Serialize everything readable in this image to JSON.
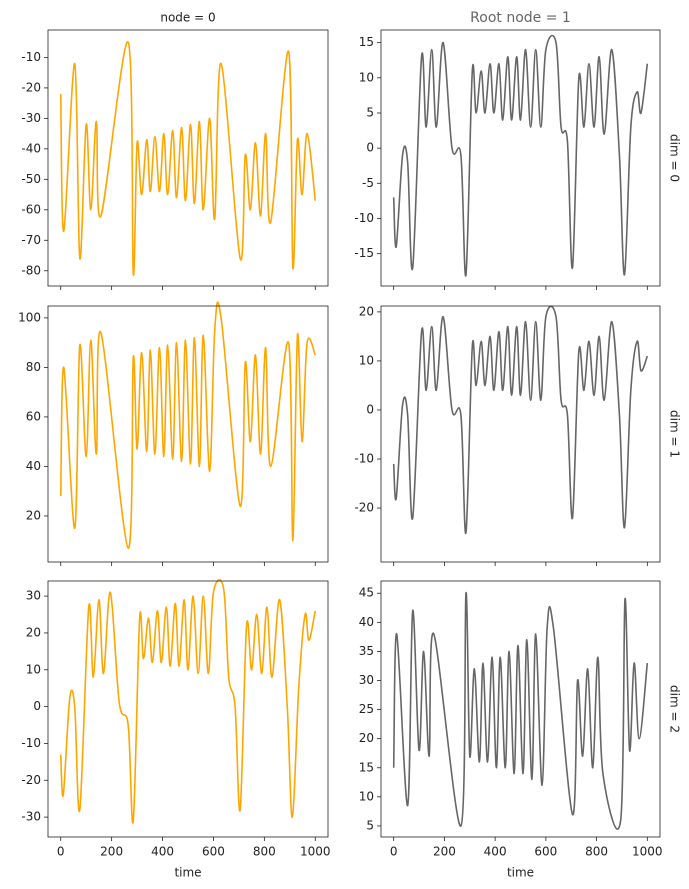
{
  "chart_data": [
    {
      "type": "line",
      "title": "node = 0",
      "color": "#ffa500",
      "x": [
        0,
        12,
        55,
        75,
        100,
        118,
        140,
        158,
        265,
        285,
        300,
        318,
        338,
        352,
        370,
        388,
        405,
        420,
        440,
        455,
        475,
        490,
        510,
        525,
        545,
        560,
        585,
        605,
        630,
        705,
        725,
        745,
        765,
        785,
        805,
        825,
        895,
        912,
        930,
        948,
        968,
        1000
      ],
      "values": [
        -22,
        -67,
        -12,
        -76,
        -32,
        -60,
        -31,
        -62,
        -5,
        -81,
        -38,
        -55,
        -37,
        -54,
        -36,
        -54,
        -35,
        -55,
        -34,
        -56,
        -33,
        -57,
        -32,
        -58,
        -31,
        -60,
        -30,
        -63,
        -12,
        -76,
        -42,
        -60,
        -38,
        -62,
        -35,
        -64,
        -8,
        -79,
        -37,
        -55,
        -35,
        -57
      ],
      "xlim": [
        -50,
        1050
      ],
      "xticks": [
        0,
        200,
        400,
        600,
        800,
        1000
      ],
      "ylim": [
        -85,
        -1
      ],
      "yticks": [
        -80,
        -70,
        -60,
        -50,
        -40,
        -30,
        -20,
        -10
      ]
    },
    {
      "type": "line",
      "title": "Root node = 1",
      "row_label": "dim = 0",
      "color": "#666666",
      "x": [
        0,
        10,
        35,
        55,
        75,
        110,
        128,
        150,
        168,
        195,
        230,
        265,
        285,
        310,
        325,
        345,
        360,
        380,
        395,
        415,
        430,
        450,
        465,
        485,
        500,
        520,
        540,
        560,
        580,
        600,
        640,
        660,
        685,
        705,
        730,
        750,
        770,
        790,
        810,
        830,
        860,
        890,
        910,
        935,
        960,
        975,
        1000
      ],
      "values": [
        -7,
        -14,
        -1,
        -2,
        -17,
        13,
        3,
        14,
        3,
        15,
        0,
        -1,
        -18,
        11,
        5,
        11,
        5,
        12,
        5,
        12,
        4,
        13,
        4,
        13,
        4,
        14,
        3,
        14,
        3,
        14,
        15,
        3,
        1,
        -17,
        10,
        3,
        12,
        3,
        13,
        2,
        14,
        -1,
        -18,
        3,
        8,
        5,
        12
      ],
      "xlim": [
        -50,
        1050
      ],
      "xticks": [
        0,
        200,
        400,
        600,
        800,
        1000
      ],
      "ylim": [
        -19.6,
        16.8
      ],
      "yticks": [
        -15,
        -10,
        -5,
        0,
        5,
        10,
        15
      ]
    },
    {
      "type": "line",
      "color": "#ffa500",
      "x": [
        0,
        12,
        55,
        75,
        100,
        118,
        140,
        158,
        265,
        285,
        300,
        318,
        338,
        352,
        370,
        388,
        405,
        420,
        440,
        455,
        475,
        490,
        510,
        525,
        545,
        560,
        585,
        605,
        630,
        705,
        725,
        745,
        765,
        785,
        805,
        825,
        895,
        912,
        930,
        948,
        968,
        1000
      ],
      "values": [
        28,
        80,
        15,
        89,
        44,
        91,
        45,
        94,
        7,
        84,
        47,
        86,
        46,
        87,
        45,
        88,
        44,
        89,
        43,
        90,
        42,
        91,
        41,
        92,
        40,
        93,
        38,
        95,
        100,
        24,
        82,
        50,
        85,
        45,
        88,
        40,
        90,
        10,
        93,
        50,
        90,
        85
      ],
      "xlim": [
        -50,
        1050
      ],
      "xticks": [
        0,
        200,
        400,
        600,
        800,
        1000
      ],
      "ylim": [
        1.4,
        104.8
      ],
      "yticks": [
        20,
        40,
        60,
        80,
        100
      ]
    },
    {
      "type": "line",
      "row_label": "dim = 1",
      "color": "#666666",
      "x": [
        0,
        10,
        35,
        55,
        75,
        110,
        128,
        150,
        168,
        195,
        230,
        265,
        285,
        310,
        325,
        345,
        360,
        380,
        395,
        415,
        430,
        450,
        465,
        485,
        500,
        520,
        540,
        560,
        580,
        600,
        640,
        660,
        685,
        705,
        730,
        750,
        770,
        790,
        810,
        830,
        860,
        890,
        910,
        935,
        960,
        975,
        1000
      ],
      "values": [
        -11,
        -18,
        1,
        -1,
        -22,
        16,
        4,
        17,
        4,
        19,
        0,
        -1,
        -25,
        13,
        5,
        14,
        5,
        15,
        4,
        16,
        4,
        17,
        3,
        17,
        3,
        18,
        2,
        18,
        2,
        19,
        19,
        2,
        -1,
        -22,
        12,
        4,
        14,
        3,
        15,
        2,
        18,
        -1,
        -24,
        4,
        14,
        8,
        11
      ],
      "xlim": [
        -50,
        1050
      ],
      "xticks": [
        0,
        200,
        400,
        600,
        800,
        1000
      ],
      "ylim": [
        -31,
        21.2
      ],
      "yticks": [
        -20,
        -10,
        0,
        10,
        20
      ]
    },
    {
      "type": "line",
      "xlabel": "time",
      "color": "#ffa500",
      "x": [
        0,
        10,
        35,
        55,
        75,
        110,
        128,
        150,
        168,
        195,
        230,
        265,
        285,
        310,
        325,
        345,
        360,
        380,
        395,
        415,
        430,
        450,
        465,
        485,
        500,
        520,
        540,
        560,
        580,
        600,
        640,
        660,
        685,
        705,
        730,
        750,
        770,
        790,
        810,
        830,
        860,
        890,
        910,
        935,
        960,
        975,
        1000
      ],
      "values": [
        -13,
        -24,
        2,
        0,
        -28,
        27,
        8,
        29,
        9,
        31,
        1,
        -5,
        -31,
        24,
        13,
        24,
        12,
        26,
        12,
        27,
        11,
        28,
        11,
        29,
        10,
        30,
        9,
        30,
        9,
        31,
        32,
        8,
        0,
        -28,
        22,
        10,
        25,
        9,
        27,
        8,
        29,
        0,
        -30,
        5,
        25,
        18,
        26
      ],
      "xlim": [
        -50,
        1050
      ],
      "xticks": [
        0,
        200,
        400,
        600,
        800,
        1000
      ],
      "ylim": [
        -35.4,
        34.1
      ],
      "yticks": [
        -30,
        -20,
        -10,
        0,
        10,
        20,
        30
      ]
    },
    {
      "type": "line",
      "row_label": "dim = 2",
      "xlabel": "time",
      "color": "#666666",
      "x": [
        0,
        12,
        55,
        75,
        100,
        118,
        140,
        158,
        265,
        285,
        300,
        318,
        338,
        352,
        370,
        388,
        405,
        420,
        440,
        455,
        475,
        490,
        510,
        525,
        545,
        560,
        585,
        605,
        630,
        705,
        725,
        745,
        765,
        785,
        805,
        825,
        895,
        912,
        930,
        948,
        968,
        1000
      ],
      "values": [
        15,
        38,
        8.5,
        42,
        18,
        35,
        17,
        38,
        5,
        45,
        17,
        32,
        16,
        33,
        16,
        34,
        15,
        34,
        15,
        35,
        14,
        36,
        14,
        37,
        13,
        38,
        12,
        39,
        39,
        7,
        30,
        17,
        32,
        15,
        34,
        14,
        6,
        44,
        18,
        33,
        20,
        33
      ],
      "xlim": [
        -50,
        1050
      ],
      "xticks": [
        0,
        200,
        400,
        600,
        800,
        1000
      ],
      "ylim": [
        3.1,
        47.1
      ],
      "yticks": [
        5,
        10,
        15,
        20,
        25,
        30,
        35,
        40,
        45
      ]
    }
  ]
}
